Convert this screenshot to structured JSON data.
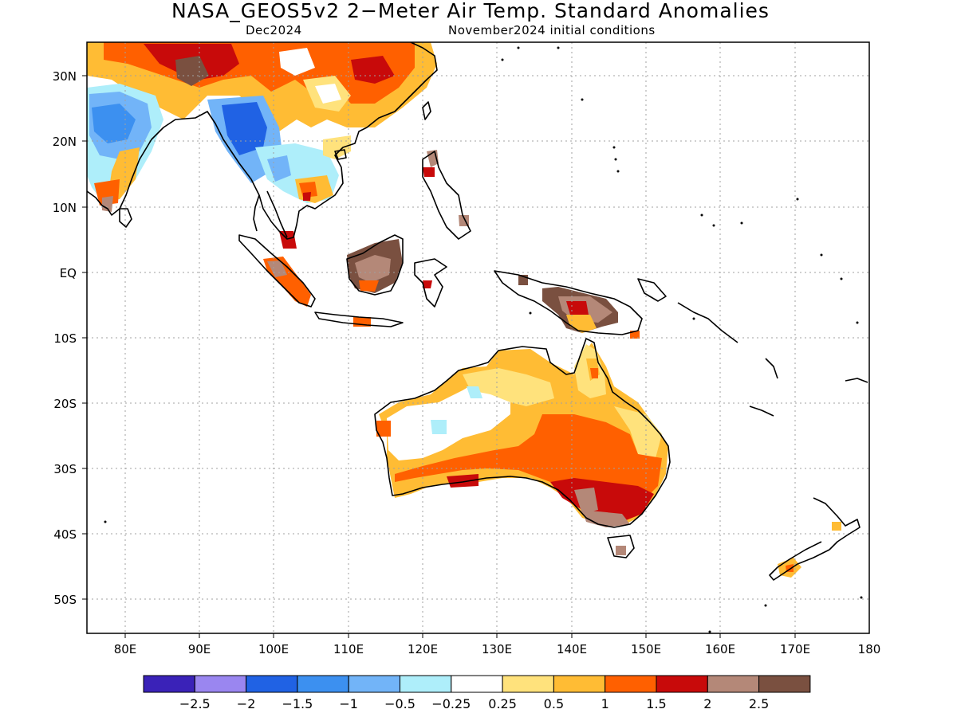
{
  "header": {
    "title": "NASA_GEOS5v2 2−Meter Air Temp. Standard Anomalies",
    "month": "Dec2024",
    "init": "November2024 initial conditions"
  },
  "axes": {
    "lon_ticks": [
      "80E",
      "90E",
      "100E",
      "110E",
      "120E",
      "130E",
      "140E",
      "150E",
      "160E",
      "170E",
      "180"
    ],
    "lat_ticks": [
      "30N",
      "20N",
      "10N",
      "EQ",
      "10S",
      "20S",
      "30S",
      "40S",
      "50S"
    ]
  },
  "colorbar": {
    "colors": [
      "#3a22b8",
      "#9a86f0",
      "#2062e4",
      "#3c90f0",
      "#72b4f8",
      "#aeeefa",
      "#ffffff",
      "#ffe27c",
      "#ffbc34",
      "#ff6000",
      "#c80a0a",
      "#b48878",
      "#7a5040"
    ],
    "labels": [
      "−2.5",
      "−2",
      "−1.5",
      "−1",
      "−0.5",
      "−0.25",
      "0.25",
      "0.5",
      "1",
      "1.5",
      "2",
      "2.5"
    ]
  },
  "anomaly_regions": [
    {
      "region": "Southeast Australia",
      "level": "2"
    },
    {
      "region": "Central Australia",
      "level": "1.5"
    },
    {
      "region": "Western Australia coast",
      "level": "0.5"
    },
    {
      "region": "Borneo",
      "level": "2.5"
    },
    {
      "region": "New Guinea",
      "level": "2.5"
    },
    {
      "region": "Myanmar / Yunnan",
      "level": "-1"
    },
    {
      "region": "India",
      "level": "-1"
    },
    {
      "region": "Tibet / South China",
      "level": "1.5"
    }
  ]
}
